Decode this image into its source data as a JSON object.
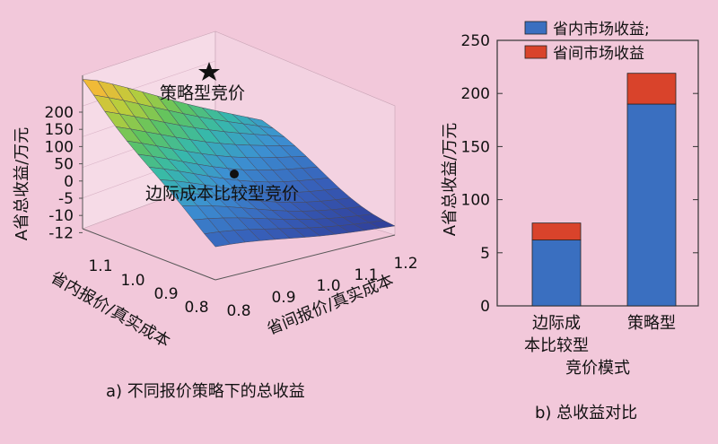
{
  "chart_data": [
    {
      "type": "surface",
      "caption": "a) 不同报价策略下的总收益",
      "zlabel": "A省总收益/万元",
      "xlabel": "省内报价/真实成本",
      "ylabel": "省间报价/真实成本",
      "x_ticks": [
        "1.1",
        "1.0",
        "0.9",
        "0.8"
      ],
      "y_ticks": [
        "0.8",
        "0.9",
        "1.0",
        "1.1",
        "1.2"
      ],
      "z_ticks": [
        "200",
        "150",
        "100",
        "50",
        "0",
        "-5",
        "-10",
        "-12"
      ],
      "annotations": [
        {
          "label": "策略型竞价",
          "marker": "star"
        },
        {
          "label": "边际成本比较型竞价",
          "marker": "dot"
        }
      ]
    },
    {
      "type": "bar",
      "stacked": true,
      "caption": "b) 总收益对比",
      "ylabel": "A省总收益/万元",
      "ylim": [
        0,
        250
      ],
      "y_ticks": [
        "0",
        "5",
        "100",
        "150",
        "200",
        "250"
      ],
      "categories": [
        {
          "line1": "边际成",
          "line2": "本比较型"
        },
        {
          "line1": "策略型",
          "line2": ""
        }
      ],
      "xlabel": "竞价模式",
      "series": [
        {
          "name": "省内市场收益;",
          "color": "#3a6fc0",
          "values": [
            62,
            190
          ]
        },
        {
          "name": "省间市场收益",
          "color": "#d9432b",
          "values": [
            16,
            29
          ]
        }
      ]
    }
  ]
}
